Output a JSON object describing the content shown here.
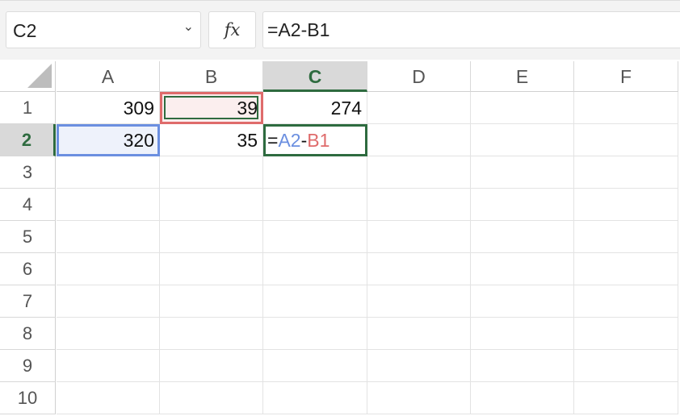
{
  "name_box": {
    "value": "C2"
  },
  "fx_label": "fx",
  "formula_bar": {
    "value": "=A2-B1"
  },
  "columns": [
    "A",
    "B",
    "C",
    "D",
    "E",
    "F"
  ],
  "rows": [
    "1",
    "2",
    "3",
    "4",
    "5",
    "6",
    "7",
    "8",
    "9",
    "10"
  ],
  "selected_cell": "C2",
  "cells": {
    "A1": "309",
    "B1": "39",
    "C1": "274",
    "A2": "320",
    "B2": "35"
  },
  "edit": {
    "eq": "=",
    "ref1": "A2",
    "op": "-",
    "ref2": "B1"
  },
  "colors": {
    "accent": "#2e6b3f",
    "ref1": "#6b8fe0",
    "ref2": "#df6b6b"
  }
}
